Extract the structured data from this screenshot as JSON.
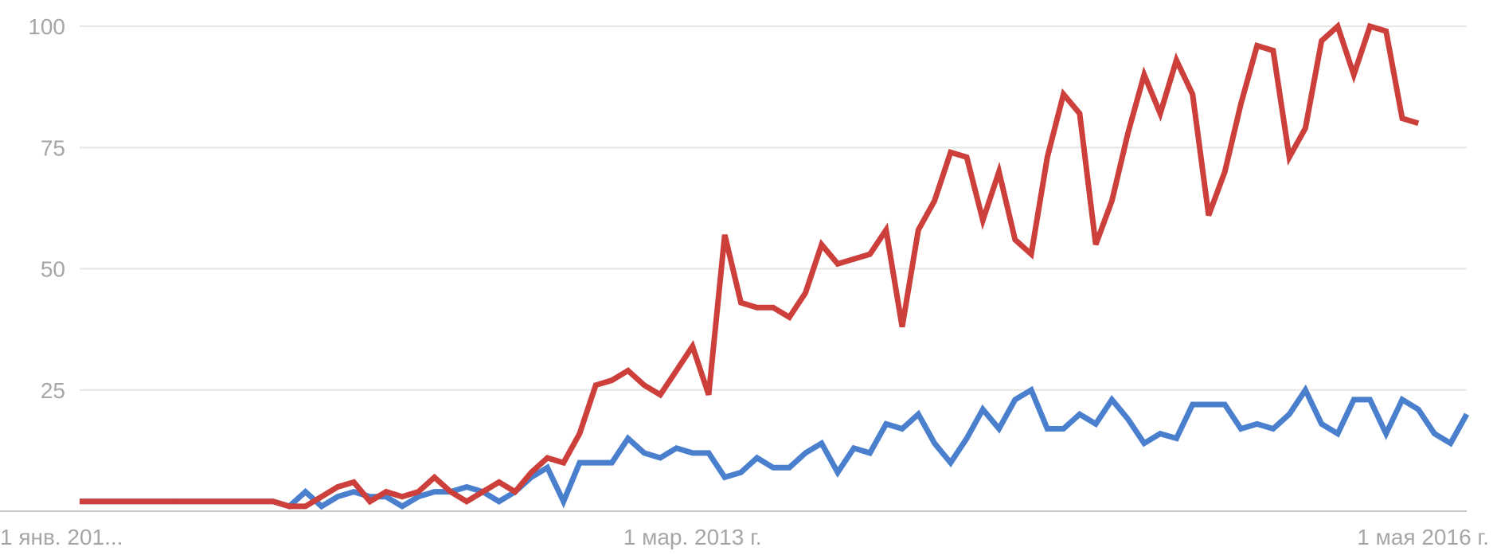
{
  "chart_data": {
    "type": "line",
    "title": "",
    "xlabel": "",
    "ylabel": "",
    "ylim": [
      0,
      100
    ],
    "y_ticks": [
      25,
      50,
      75,
      100
    ],
    "x_tick_labels": [
      "1 янв. 201...",
      "1 мар. 2013 г.",
      "1 мая 2016 г."
    ],
    "x_tick_index": [
      0,
      38,
      76
    ],
    "grid": true,
    "colors": {
      "blue": "#4a7fce",
      "red": "#cc3f3b",
      "grid": "#e6e6e6",
      "axis": "#c8c8c8",
      "tick_text": "#a6a6a6"
    },
    "series": [
      {
        "color": "#4a7fce",
        "values": [
          2,
          2,
          2,
          2,
          2,
          2,
          2,
          2,
          2,
          2,
          2,
          2,
          2,
          1,
          4,
          1,
          3,
          4,
          3,
          3,
          1,
          3,
          4,
          4,
          5,
          4,
          2,
          4,
          7,
          9,
          2,
          10,
          10,
          10,
          15,
          12,
          11,
          13,
          12,
          12,
          7,
          8,
          11,
          9,
          9,
          12,
          14,
          8,
          13,
          12,
          18,
          17,
          20,
          14,
          10,
          15,
          21,
          17,
          23,
          25,
          17,
          17,
          20,
          18,
          23,
          19,
          14,
          16,
          15,
          22,
          22,
          22,
          17,
          18,
          17,
          20,
          25,
          18,
          16,
          23,
          23,
          16,
          23,
          21,
          16,
          14,
          20
        ]
      },
      {
        "color": "#cc3f3b",
        "values": [
          2,
          2,
          2,
          2,
          2,
          2,
          2,
          2,
          2,
          2,
          2,
          2,
          2,
          1,
          1,
          3,
          5,
          6,
          2,
          4,
          3,
          4,
          7,
          4,
          2,
          4,
          6,
          4,
          8,
          11,
          10,
          16,
          26,
          27,
          29,
          26,
          24,
          29,
          34,
          24,
          57,
          43,
          42,
          42,
          40,
          45,
          55,
          51,
          52,
          53,
          58,
          38,
          58,
          64,
          74,
          73,
          60,
          70,
          56,
          53,
          73,
          86,
          82,
          55,
          64,
          78,
          90,
          82,
          93,
          86,
          61,
          70,
          84,
          96,
          95,
          73,
          79,
          97,
          100,
          90,
          100,
          99,
          81,
          80
        ]
      }
    ]
  }
}
